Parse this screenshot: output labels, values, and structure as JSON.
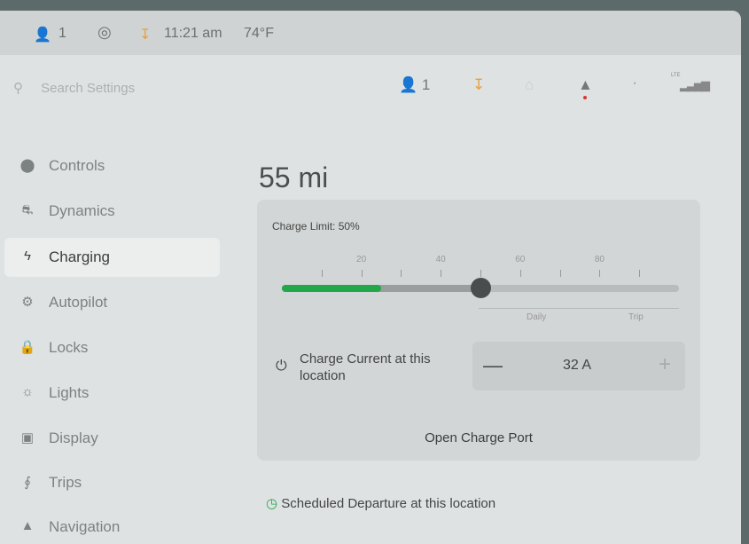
{
  "status_bar": {
    "driver_profile": "1",
    "time": "11:21 am",
    "temperature": "74°F"
  },
  "header": {
    "search_placeholder": "Search Settings",
    "profile_count": "1",
    "icons": [
      "user-icon",
      "download-icon",
      "home-icon",
      "bell-icon",
      "bluetooth-icon",
      "lte-signal-icon"
    ],
    "lte_label": "LTE"
  },
  "sidebar": {
    "items": [
      {
        "label": "Controls",
        "icon": "toggle-icon"
      },
      {
        "label": "Dynamics",
        "icon": "car-icon"
      },
      {
        "label": "Charging",
        "icon": "bolt-icon",
        "active": true
      },
      {
        "label": "Autopilot",
        "icon": "steering-wheel-icon"
      },
      {
        "label": "Locks",
        "icon": "lock-icon"
      },
      {
        "label": "Lights",
        "icon": "sun-icon"
      },
      {
        "label": "Display",
        "icon": "display-icon"
      },
      {
        "label": "Trips",
        "icon": "trips-icon"
      },
      {
        "label": "Navigation",
        "icon": "navigation-icon"
      }
    ]
  },
  "main": {
    "range": "55 mi",
    "charge_limit_label": "Charge Limit: 50%",
    "charge_limit_percent": 50,
    "current_charge_percent": 25,
    "slider_tick_labels": [
      "20",
      "40",
      "60",
      "80"
    ],
    "zone_labels": {
      "daily": "Daily",
      "trip": "Trip"
    },
    "charge_current_label": "Charge Current at this location",
    "charge_current_value": "32 A",
    "open_charge_port": "Open Charge Port",
    "scheduled_departure": "Scheduled Departure at this location"
  },
  "colors": {
    "charge_green": "#22a84a",
    "download_orange": "#e8a040",
    "alert_red": "#d33"
  }
}
